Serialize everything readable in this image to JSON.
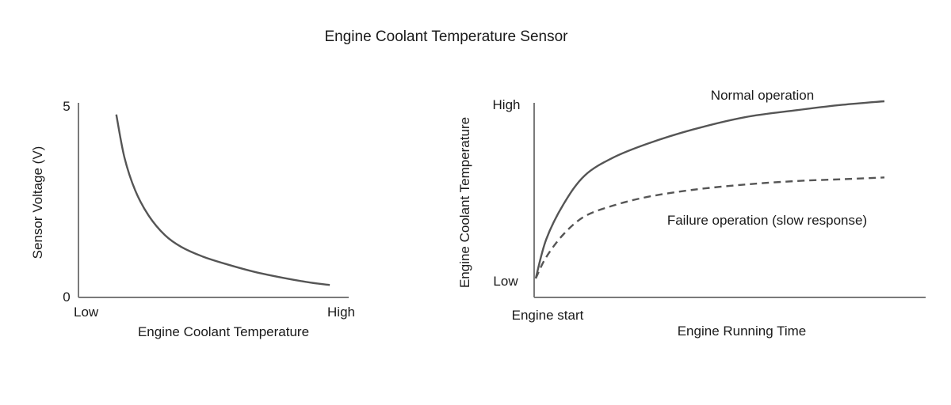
{
  "title": "Engine Coolant Temperature Sensor",
  "chart_data": [
    {
      "type": "line",
      "xlabel": "Engine Coolant Temperature",
      "ylabel": "Sensor Voltage (V)",
      "x_tick_labels": [
        "Low",
        "High"
      ],
      "y_tick_labels": [
        "0",
        "5"
      ],
      "xlim": [
        0,
        1
      ],
      "ylim": [
        0,
        5
      ],
      "grid": false,
      "series": [
        {
          "points": [
            [
              0.14,
              4.7
            ],
            [
              0.17,
              3.6
            ],
            [
              0.21,
              2.75
            ],
            [
              0.26,
              2.1
            ],
            [
              0.32,
              1.6
            ],
            [
              0.38,
              1.3
            ],
            [
              0.46,
              1.05
            ],
            [
              0.55,
              0.85
            ],
            [
              0.65,
              0.66
            ],
            [
              0.76,
              0.5
            ],
            [
              0.86,
              0.38
            ],
            [
              0.93,
              0.32
            ]
          ]
        }
      ]
    },
    {
      "type": "line",
      "xlabel": "Engine Running Time",
      "ylabel": "Engine Coolant Temperature",
      "x_tick_labels": [
        "Engine start"
      ],
      "y_tick_labels": [
        "Low",
        "High"
      ],
      "xlim": [
        0,
        1
      ],
      "ylim": [
        0,
        1
      ],
      "grid": false,
      "series": [
        {
          "name": "Normal operation",
          "style": "solid",
          "points": [
            [
              0.0,
              0.0
            ],
            [
              0.03,
              0.22
            ],
            [
              0.08,
              0.42
            ],
            [
              0.14,
              0.58
            ],
            [
              0.22,
              0.68
            ],
            [
              0.32,
              0.76
            ],
            [
              0.45,
              0.84
            ],
            [
              0.6,
              0.91
            ],
            [
              0.75,
              0.95
            ],
            [
              0.88,
              0.98
            ],
            [
              1.0,
              1.0
            ]
          ]
        },
        {
          "name": "Failure operation (slow response)",
          "style": "dashed",
          "points": [
            [
              0.0,
              0.0
            ],
            [
              0.03,
              0.12
            ],
            [
              0.08,
              0.25
            ],
            [
              0.14,
              0.35
            ],
            [
              0.22,
              0.41
            ],
            [
              0.32,
              0.46
            ],
            [
              0.45,
              0.5
            ],
            [
              0.6,
              0.53
            ],
            [
              0.75,
              0.55
            ],
            [
              0.88,
              0.56
            ],
            [
              1.0,
              0.57
            ]
          ]
        }
      ]
    }
  ]
}
